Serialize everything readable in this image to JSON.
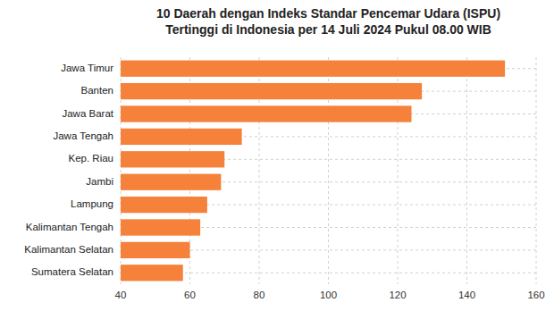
{
  "chart_data": {
    "type": "bar",
    "orientation": "horizontal",
    "title": "10 Daerah dengan Indeks Standar Pencemar Udara (ISPU)\nTertinggi di Indonesia per 14 Juli 2024 Pukul 08.00 WIB",
    "categories": [
      "Sumatera Selatan",
      "Kalimantan Selatan",
      "Kalimantan Tengah",
      "Lampung",
      "Jambi",
      "Kep. Riau",
      "Jawa Tengah",
      "Jawa Barat",
      "Banten",
      "Jawa Timur"
    ],
    "values": [
      58,
      60,
      63,
      65,
      69,
      70,
      75,
      124,
      127,
      151
    ],
    "color": "#F5813A",
    "xlim": [
      40,
      160
    ],
    "xticks": [
      40,
      60,
      80,
      100,
      120,
      140,
      160
    ],
    "grid": true
  }
}
